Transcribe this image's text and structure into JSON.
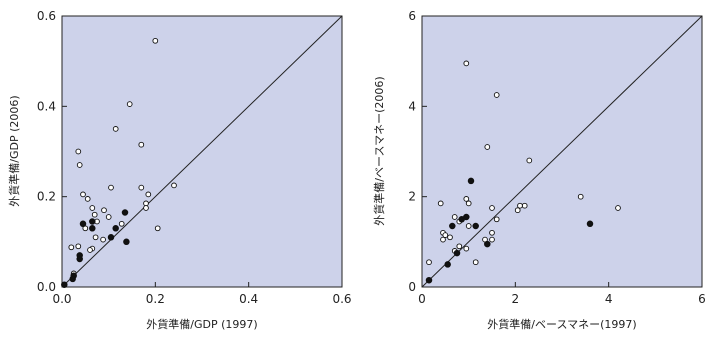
{
  "colors": {
    "plot_background": "#cdd2ea",
    "axis": "#222222",
    "open_marker_fill": "#ffffff",
    "filled_marker_fill": "#111111"
  },
  "chart_data": [
    {
      "type": "scatter",
      "xlabel": "外貨準備/GDP (1997)",
      "ylabel": "外貨準備/GDP (2006)",
      "xlim": [
        0,
        0.6
      ],
      "ylim": [
        0,
        0.6
      ],
      "xticks": [
        "0.0",
        "0.2",
        "0.4",
        "0.6"
      ],
      "yticks": [
        "0.0",
        "0.2",
        "0.4",
        "0.6"
      ],
      "reference_line": "45-degree line y = x",
      "grid": false,
      "series": [
        {
          "marker": "open-circle",
          "points": [
            [
              0.2,
              0.545
            ],
            [
              0.145,
              0.405
            ],
            [
              0.115,
              0.35
            ],
            [
              0.17,
              0.315
            ],
            [
              0.035,
              0.3
            ],
            [
              0.038,
              0.27
            ],
            [
              0.24,
              0.225
            ],
            [
              0.105,
              0.22
            ],
            [
              0.17,
              0.22
            ],
            [
              0.185,
              0.205
            ],
            [
              0.045,
              0.205
            ],
            [
              0.055,
              0.195
            ],
            [
              0.18,
              0.185
            ],
            [
              0.065,
              0.175
            ],
            [
              0.09,
              0.17
            ],
            [
              0.18,
              0.175
            ],
            [
              0.07,
              0.16
            ],
            [
              0.1,
              0.155
            ],
            [
              0.075,
              0.145
            ],
            [
              0.128,
              0.14
            ],
            [
              0.205,
              0.13
            ],
            [
              0.05,
              0.13
            ],
            [
              0.072,
              0.11
            ],
            [
              0.088,
              0.105
            ],
            [
              0.035,
              0.09
            ],
            [
              0.02,
              0.088
            ],
            [
              0.065,
              0.085
            ],
            [
              0.06,
              0.082
            ],
            [
              0.025,
              0.03
            ]
          ]
        },
        {
          "marker": "filled-circle",
          "points": [
            [
              0.135,
              0.165
            ],
            [
              0.065,
              0.145
            ],
            [
              0.045,
              0.14
            ],
            [
              0.065,
              0.13
            ],
            [
              0.115,
              0.13
            ],
            [
              0.105,
              0.11
            ],
            [
              0.138,
              0.1
            ],
            [
              0.038,
              0.07
            ],
            [
              0.038,
              0.062
            ],
            [
              0.025,
              0.025
            ],
            [
              0.023,
              0.018
            ],
            [
              0.005,
              0.005
            ]
          ]
        }
      ]
    },
    {
      "type": "scatter",
      "xlabel": "外貨準備/ベースマネー(1997)",
      "ylabel": "外貨準備/ベースマネー(2006)",
      "xlim": [
        0,
        6
      ],
      "ylim": [
        0,
        6
      ],
      "xticks": [
        "0",
        "2",
        "4",
        "6"
      ],
      "yticks": [
        "0",
        "2",
        "4",
        "6"
      ],
      "reference_line": "45-degree line y = x",
      "grid": false,
      "series": [
        {
          "marker": "open-circle",
          "points": [
            [
              0.95,
              4.95
            ],
            [
              1.6,
              4.25
            ],
            [
              1.4,
              3.1
            ],
            [
              2.3,
              2.8
            ],
            [
              3.4,
              2.0
            ],
            [
              4.2,
              1.75
            ],
            [
              0.4,
              1.85
            ],
            [
              0.95,
              1.95
            ],
            [
              1.0,
              1.85
            ],
            [
              1.5,
              1.75
            ],
            [
              2.05,
              1.7
            ],
            [
              2.2,
              1.8
            ],
            [
              2.1,
              1.8
            ],
            [
              1.6,
              1.5
            ],
            [
              0.7,
              1.55
            ],
            [
              0.8,
              1.45
            ],
            [
              1.0,
              1.35
            ],
            [
              0.45,
              1.2
            ],
            [
              0.5,
              1.15
            ],
            [
              0.45,
              1.05
            ],
            [
              0.6,
              1.1
            ],
            [
              1.5,
              1.2
            ],
            [
              1.5,
              1.05
            ],
            [
              1.35,
              1.05
            ],
            [
              0.8,
              0.9
            ],
            [
              0.95,
              0.85
            ],
            [
              0.7,
              0.8
            ],
            [
              0.15,
              0.55
            ],
            [
              1.15,
              0.55
            ]
          ]
        },
        {
          "marker": "filled-circle",
          "points": [
            [
              1.05,
              2.35
            ],
            [
              0.95,
              1.55
            ],
            [
              0.85,
              1.5
            ],
            [
              1.15,
              1.35
            ],
            [
              0.65,
              1.35
            ],
            [
              1.4,
              0.95
            ],
            [
              0.75,
              0.75
            ],
            [
              3.6,
              1.4
            ],
            [
              0.55,
              0.5
            ],
            [
              0.15,
              0.15
            ]
          ]
        }
      ]
    }
  ]
}
